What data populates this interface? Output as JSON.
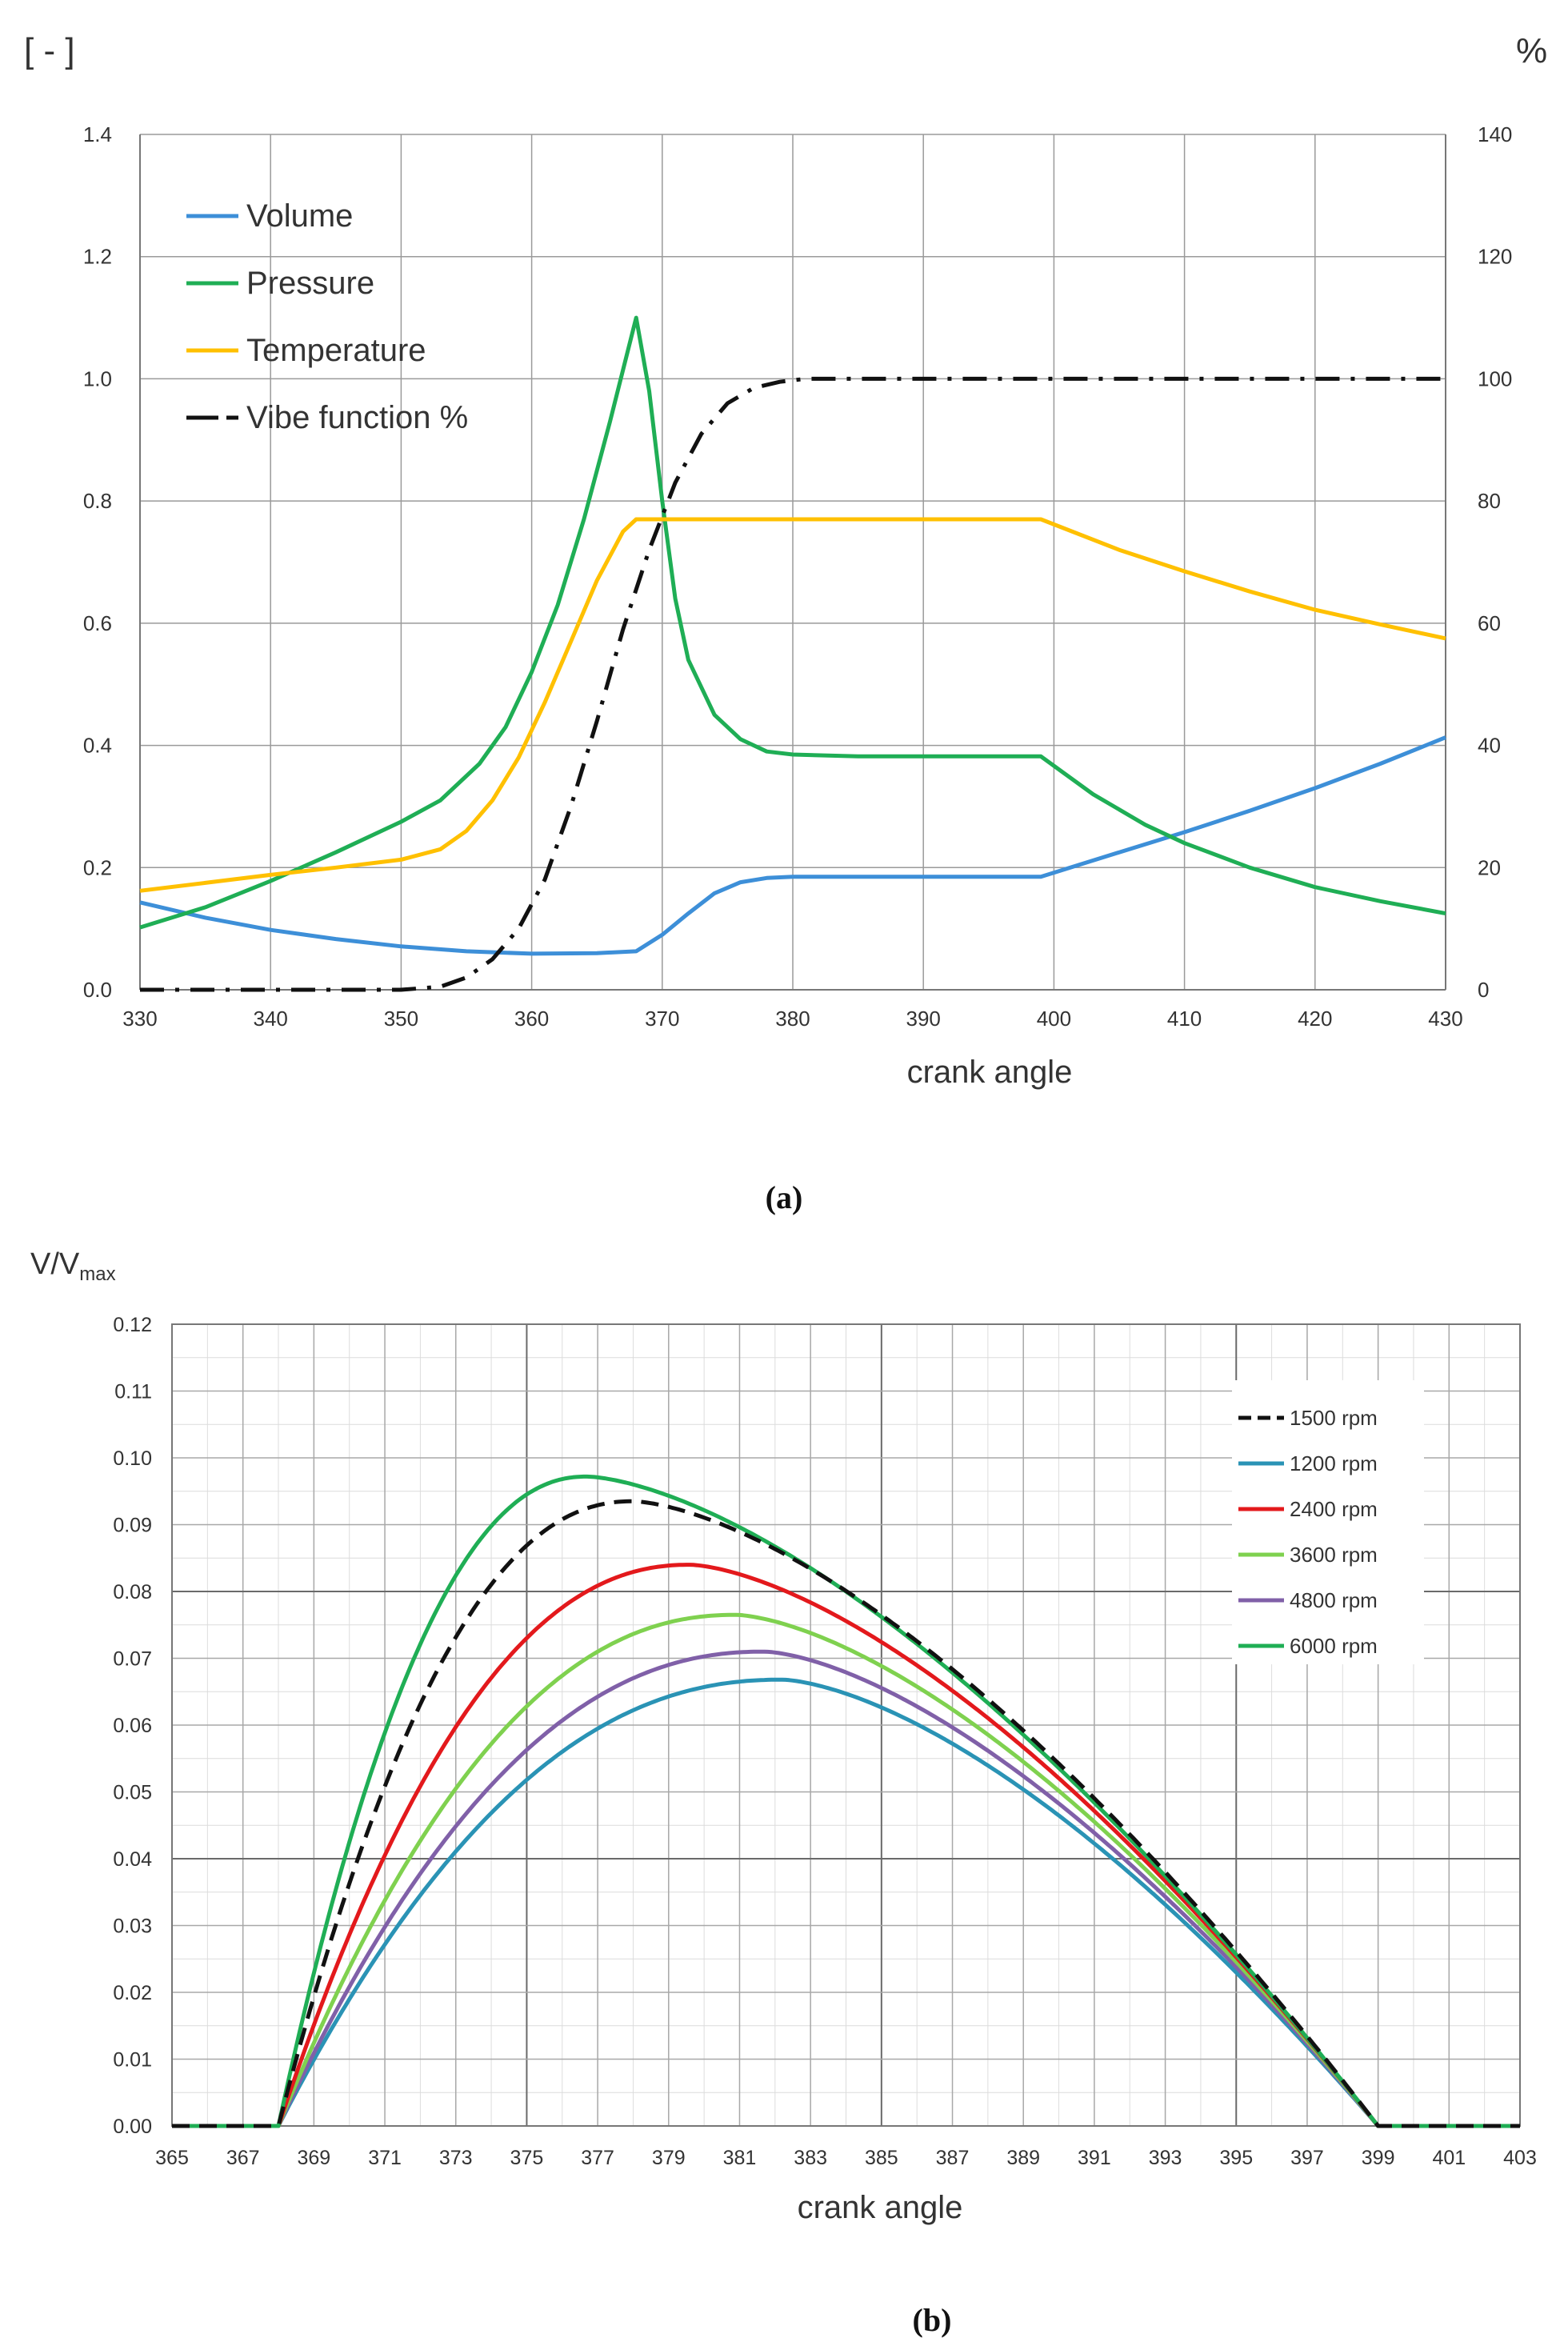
{
  "chart_data": [
    {
      "type": "line",
      "caption": "(a)",
      "y_unit_left": "[ - ]",
      "y_unit_right": "%",
      "xlabel": "crank angle",
      "xlim": [
        330,
        430
      ],
      "ylim_left": [
        0,
        1.4
      ],
      "ylim_right": [
        0,
        140
      ],
      "x_ticks": [
        "330",
        "340",
        "350",
        "360",
        "370",
        "380",
        "390",
        "400",
        "410",
        "420",
        "430"
      ],
      "y_ticks_left": [
        "0.0",
        "0.2",
        "0.4",
        "0.6",
        "0.8",
        "1.0",
        "1.2",
        "1.4"
      ],
      "y_ticks_right": [
        "0",
        "20",
        "40",
        "60",
        "80",
        "100",
        "120",
        "140"
      ],
      "grid": true,
      "legend_position": "top-left",
      "series": [
        {
          "name": "Volume",
          "color": "#3d8fd8",
          "dash": "solid",
          "axis": "left",
          "x": [
            330,
            335,
            340,
            345,
            350,
            355,
            360,
            365,
            368,
            370,
            372,
            374,
            376,
            378,
            380,
            385,
            390,
            395,
            399,
            405,
            410,
            415,
            420,
            425,
            430
          ],
          "values": [
            0.143,
            0.118,
            0.098,
            0.083,
            0.071,
            0.063,
            0.059,
            0.06,
            0.063,
            0.09,
            0.125,
            0.158,
            0.176,
            0.183,
            0.185,
            0.185,
            0.185,
            0.185,
            0.185,
            0.225,
            0.258,
            0.293,
            0.33,
            0.37,
            0.413
          ]
        },
        {
          "name": "Pressure",
          "color": "#1fae55",
          "dash": "solid",
          "axis": "left",
          "x": [
            330,
            335,
            340,
            345,
            350,
            353,
            356,
            358,
            360,
            362,
            364,
            366,
            368,
            369,
            370,
            371,
            372,
            374,
            376,
            378,
            380,
            385,
            390,
            395,
            399,
            403,
            407,
            410,
            415,
            420,
            425,
            430
          ],
          "values": [
            0.102,
            0.135,
            0.178,
            0.225,
            0.275,
            0.31,
            0.37,
            0.43,
            0.52,
            0.63,
            0.77,
            0.93,
            1.1,
            0.98,
            0.8,
            0.64,
            0.54,
            0.45,
            0.41,
            0.39,
            0.385,
            0.382,
            0.382,
            0.382,
            0.382,
            0.32,
            0.27,
            0.24,
            0.2,
            0.168,
            0.145,
            0.125
          ]
        },
        {
          "name": "Temperature",
          "color": "#ffc000",
          "dash": "solid",
          "axis": "left",
          "x": [
            330,
            335,
            340,
            345,
            350,
            353,
            355,
            357,
            359,
            361,
            363,
            365,
            367,
            368,
            370,
            380,
            390,
            399,
            405,
            410,
            415,
            420,
            425,
            430
          ],
          "values": [
            0.162,
            0.175,
            0.188,
            0.2,
            0.213,
            0.23,
            0.26,
            0.31,
            0.38,
            0.47,
            0.57,
            0.67,
            0.75,
            0.77,
            0.77,
            0.77,
            0.77,
            0.77,
            0.72,
            0.685,
            0.652,
            0.622,
            0.598,
            0.575
          ]
        },
        {
          "name": "Vibe function %",
          "color": "#111111",
          "dash": "dashdot",
          "axis": "right",
          "x": [
            330,
            350,
            353,
            355,
            357,
            359,
            361,
            363,
            365,
            367,
            369,
            371,
            373,
            375,
            377,
            379,
            381,
            385,
            390,
            400,
            410,
            420,
            430
          ],
          "values": [
            0,
            0,
            0.5,
            2,
            5,
            10,
            18,
            30,
            44,
            59,
            72,
            83,
            91,
            96,
            98.5,
            99.5,
            100,
            100,
            100,
            100,
            100,
            100,
            100
          ]
        }
      ]
    },
    {
      "type": "line",
      "caption": "(b)",
      "ylabel": "V/V",
      "ylabel_sub": "max",
      "xlabel": "crank angle",
      "xlim": [
        365,
        403
      ],
      "ylim": [
        0,
        0.12
      ],
      "x_ticks": [
        "365",
        "367",
        "369",
        "371",
        "373",
        "375",
        "377",
        "379",
        "381",
        "383",
        "385",
        "387",
        "389",
        "391",
        "393",
        "395",
        "397",
        "399",
        "401",
        "403"
      ],
      "y_ticks": [
        "0.00",
        "0.01",
        "0.02",
        "0.03",
        "0.04",
        "0.05",
        "0.06",
        "0.07",
        "0.08",
        "0.09",
        "0.10",
        "0.11",
        "0.12"
      ],
      "grid": true,
      "legend_position": "top-right",
      "series": [
        {
          "name": "1500 rpm",
          "color": "#111111",
          "dash": "dashed",
          "peak_x": 378.0,
          "peak_y": 0.0935
        },
        {
          "name": "1200 rpm",
          "color": "#2a93b5",
          "dash": "solid",
          "peak_x": 382.2,
          "peak_y": 0.0668
        },
        {
          "name": "2400 rpm",
          "color": "#e3191c",
          "dash": "solid",
          "peak_x": 379.6,
          "peak_y": 0.084
        },
        {
          "name": "3600 rpm",
          "color": "#7fd14f",
          "dash": "solid",
          "peak_x": 380.9,
          "peak_y": 0.0765
        },
        {
          "name": "4800 rpm",
          "color": "#8060a8",
          "dash": "solid",
          "peak_x": 381.7,
          "peak_y": 0.071
        },
        {
          "name": "6000 rpm",
          "color": "#1fae55",
          "dash": "solid",
          "peak_x": 376.7,
          "peak_y": 0.0972
        }
      ],
      "curve_start_x": 368,
      "curve_end_x": 399
    }
  ]
}
